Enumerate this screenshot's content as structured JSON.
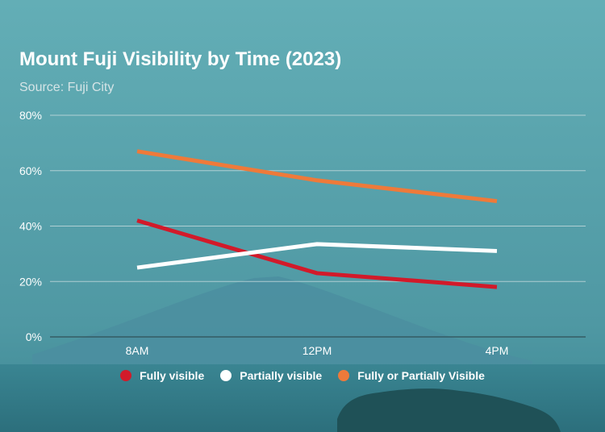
{
  "chart_data": {
    "type": "line",
    "title": "Mount Fuji Visibility by Time (2023)",
    "subtitle": "Source: Fuji City",
    "categories": [
      "8AM",
      "12PM",
      "4PM"
    ],
    "ylim": [
      0,
      80
    ],
    "yticks": [
      0,
      20,
      40,
      60,
      80
    ],
    "ytick_labels": [
      "0%",
      "20%",
      "40%",
      "60%",
      "80%"
    ],
    "grid": true,
    "legend": "bottom",
    "series": [
      {
        "name": "Fully visible",
        "values": [
          42,
          23,
          18
        ],
        "color": "#d21a2a"
      },
      {
        "name": "Partially visible",
        "values": [
          25,
          33.5,
          31
        ],
        "color": "#ffffff"
      },
      {
        "name": "Fully or Partially Visible",
        "values": [
          67,
          56.5,
          49
        ],
        "color": "#ee7a3a"
      }
    ]
  },
  "colors": {
    "sky_top": "#5faab2",
    "sky_bottom": "#3f8a96",
    "mountain": "#4a8d9f",
    "sea": "#2f7784",
    "island": "#1f4f55",
    "gridline": "#cfdfe0",
    "axis_label": "#ffffff"
  }
}
